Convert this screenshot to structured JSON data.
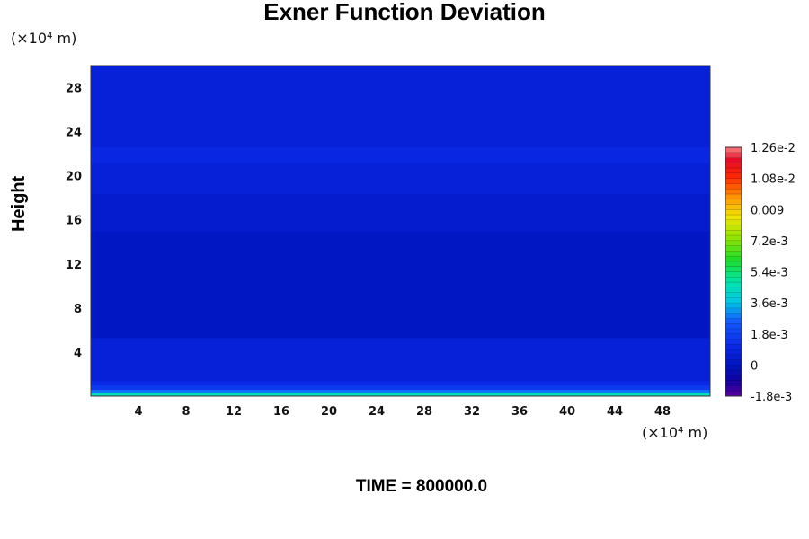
{
  "chart_data": {
    "type": "heatmap",
    "title": "Exner Function Deviation",
    "ylabel": "Height",
    "xlabel": "",
    "x_unit": "(×10⁴ m)",
    "y_unit": "(×10⁴ m)",
    "xlim": [
      0,
      52
    ],
    "ylim": [
      0,
      30
    ],
    "x_ticks": [
      4,
      8,
      12,
      16,
      20,
      24,
      28,
      32,
      36,
      40,
      44,
      48
    ],
    "y_ticks": [
      4,
      8,
      12,
      16,
      20,
      24,
      28
    ],
    "colorbar": {
      "levels": [
        -0.0018,
        0,
        0.0018,
        0.0036,
        0.0054,
        0.0072,
        0.009,
        0.0108,
        0.0126
      ],
      "labels": [
        "-1.8e-3",
        "0",
        "1.8e-3",
        "3.6e-3",
        "5.4e-3",
        "7.2e-3",
        "0.009",
        "1.08e-2",
        "1.26e-2"
      ],
      "min": -0.0018,
      "max": 0.0126
    },
    "bands": [
      {
        "y_from": 0,
        "y_to": 0.3,
        "value": 0.0045
      },
      {
        "y_from": 0.3,
        "y_to": 0.6,
        "value": 0.0028
      },
      {
        "y_from": 0.6,
        "y_to": 1.0,
        "value": 0.0016
      },
      {
        "y_from": 1.0,
        "y_to": 1.4,
        "value": 0.0011
      },
      {
        "y_from": 1.4,
        "y_to": 5.3,
        "value": 0.0007
      },
      {
        "y_from": 5.3,
        "y_to": 15.0,
        "value": 0.0001
      },
      {
        "y_from": 15.0,
        "y_to": 18.4,
        "value": 0.0004
      },
      {
        "y_from": 18.4,
        "y_to": 21.2,
        "value": 0.0007
      },
      {
        "y_from": 21.2,
        "y_to": 22.6,
        "value": 0.001
      },
      {
        "y_from": 22.6,
        "y_to": 30.0,
        "value": 0.0007
      }
    ],
    "grid": false,
    "colormap": "rainbow"
  },
  "footer": {
    "time_label": "TIME = 800000.0"
  }
}
